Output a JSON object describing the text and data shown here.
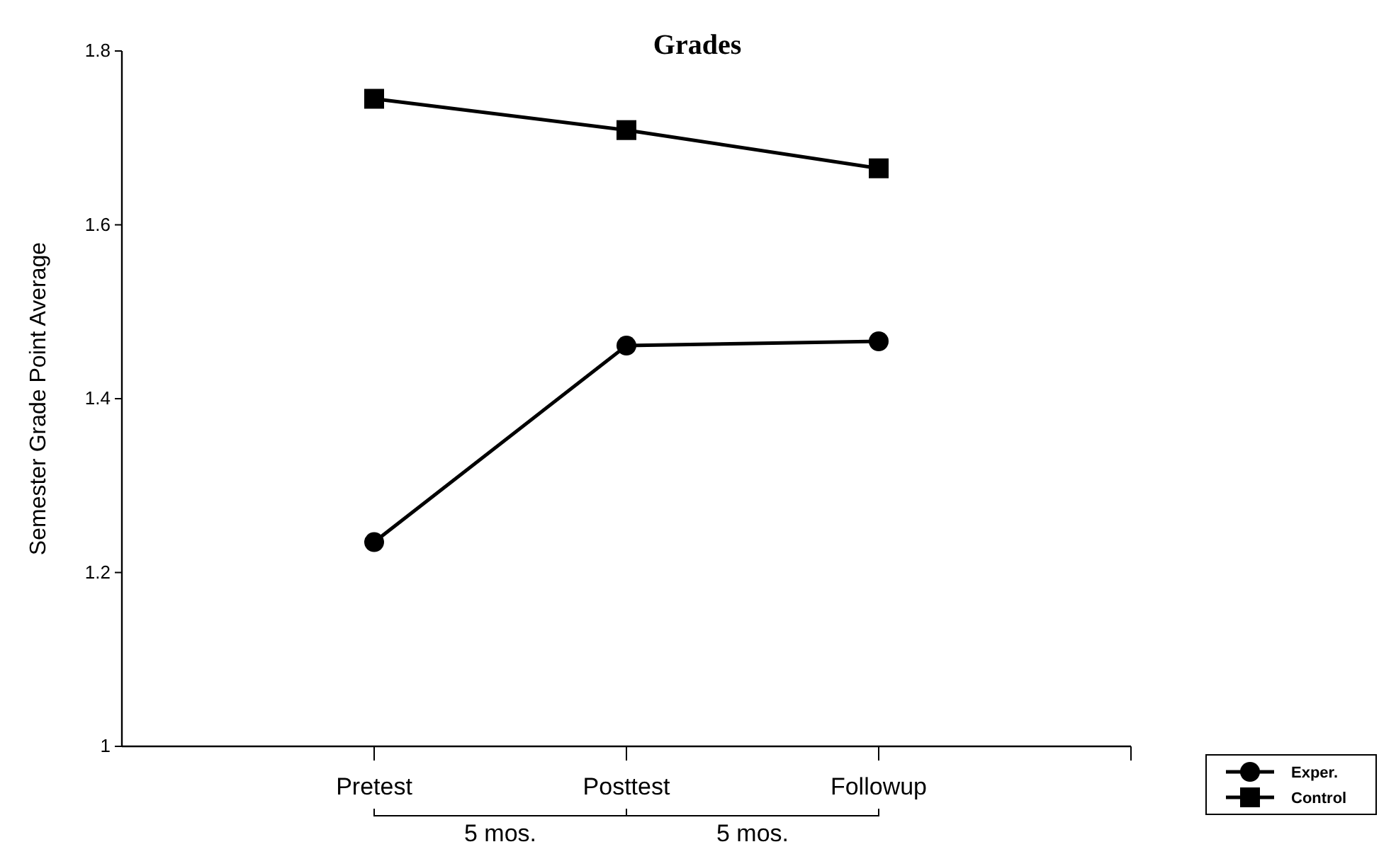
{
  "chart_data": {
    "type": "line",
    "title": "Grades",
    "ylabel": "Semester Grade Point Average",
    "categories": [
      "Pretest",
      "Posttest",
      "Followup"
    ],
    "series": [
      {
        "name": "Exper.",
        "color": "#000000",
        "marker": "circle",
        "values": [
          1.235,
          1.461,
          1.466
        ]
      },
      {
        "name": "Control",
        "color": "#000000",
        "marker": "square",
        "values": [
          1.745,
          1.709,
          1.665
        ]
      }
    ],
    "ylim": [
      1,
      1.8
    ],
    "yticks": [
      1,
      1.2,
      1.4,
      1.6,
      1.8
    ],
    "grid": false,
    "legend": "bottom right",
    "line_style": "solid",
    "annotations": [
      "5 mos.",
      "5 mos."
    ]
  }
}
